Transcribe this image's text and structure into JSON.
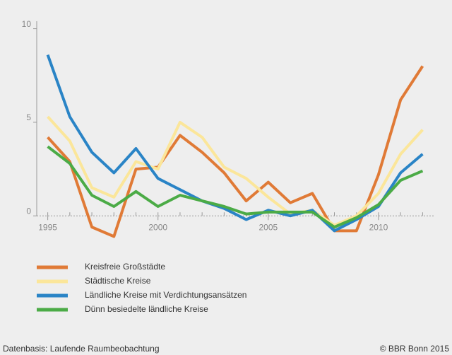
{
  "chart_data": {
    "type": "line",
    "x": [
      1995,
      1996,
      1997,
      1998,
      1999,
      2000,
      2001,
      2002,
      2003,
      2004,
      2005,
      2006,
      2007,
      2008,
      2009,
      2010,
      2011,
      2012
    ],
    "series": [
      {
        "name": "Kreisfreie Großstädte",
        "color": "#e07a36",
        "values": [
          4.2,
          2.9,
          -0.6,
          -1.1,
          2.5,
          2.6,
          4.3,
          3.4,
          2.3,
          0.8,
          1.8,
          0.7,
          1.2,
          -0.8,
          -0.8,
          2.2,
          6.2,
          8.0
        ]
      },
      {
        "name": "Städtische Kreise",
        "color": "#fbe69a",
        "values": [
          5.3,
          4.0,
          1.5,
          1.0,
          2.9,
          2.5,
          5.0,
          4.2,
          2.6,
          2.0,
          1.0,
          0.1,
          0.3,
          -0.5,
          0,
          1.2,
          3.3,
          4.6
        ]
      },
      {
        "name": "Ländliche Kreise mit Verdichtungsansätzen",
        "color": "#2a84c6",
        "values": [
          8.6,
          5.3,
          3.4,
          2.3,
          3.6,
          2.0,
          1.4,
          0.8,
          0.4,
          -0.2,
          0.3,
          0,
          0.3,
          -0.8,
          -0.2,
          0.5,
          2.3,
          3.3
        ]
      },
      {
        "name": "Dünn besiedelte ländliche Kreise",
        "color": "#4bab46",
        "values": [
          3.7,
          2.8,
          1.1,
          0.5,
          1.3,
          0.5,
          1.1,
          0.8,
          0.5,
          0.1,
          0.2,
          0.2,
          0.2,
          -0.6,
          -0.1,
          0.6,
          1.9,
          2.4
        ]
      }
    ],
    "xlim": [
      1994.5,
      2012.5
    ],
    "xticks": [
      1995,
      2000,
      2005,
      2010
    ],
    "ylim": [
      -1.2,
      10.4
    ],
    "yticks": [
      0,
      5,
      10
    ],
    "source": "Datenbasis: Laufende Raumbeobachtung",
    "copyright": "© BBR Bonn 2015"
  }
}
